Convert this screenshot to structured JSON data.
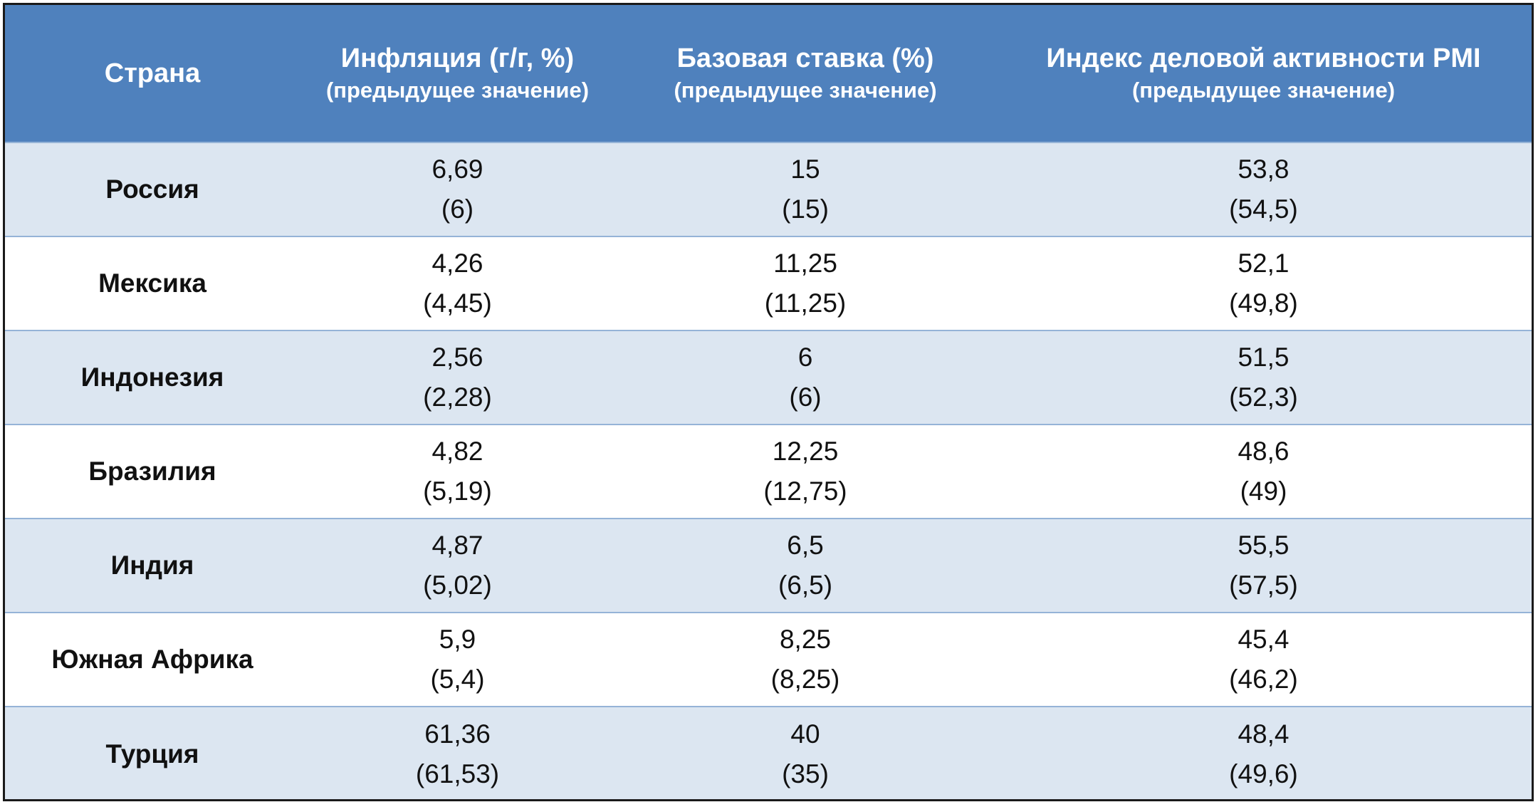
{
  "headers": {
    "country": "Страна",
    "inflation": {
      "title": "Инфляция (г/г, %)",
      "subtitle": "(предыдущее значение)"
    },
    "rate": {
      "title": "Базовая ставка (%)",
      "subtitle": "(предыдущее значение)"
    },
    "pmi": {
      "title": "Индекс деловой активности PMI",
      "subtitle": "(предыдущее значение)"
    }
  },
  "colors": {
    "header_bg": "#4f81bd",
    "band_bg": "#dce6f1",
    "row_divider": "#95b3d7"
  },
  "rows": [
    {
      "country": "Россия",
      "inflation": {
        "current": "6,69",
        "previous": "(6)"
      },
      "rate": {
        "current": "15",
        "previous": "(15)"
      },
      "pmi": {
        "current": "53,8",
        "previous": "(54,5)"
      }
    },
    {
      "country": "Мексика",
      "inflation": {
        "current": "4,26",
        "previous": "(4,45)"
      },
      "rate": {
        "current": "11,25",
        "previous": "(11,25)"
      },
      "pmi": {
        "current": "52,1",
        "previous": "(49,8)"
      }
    },
    {
      "country": "Индонезия",
      "inflation": {
        "current": "2,56",
        "previous": "(2,28)"
      },
      "rate": {
        "current": "6",
        "previous": "(6)"
      },
      "pmi": {
        "current": "51,5",
        "previous": "(52,3)"
      }
    },
    {
      "country": "Бразилия",
      "inflation": {
        "current": "4,82",
        "previous": "(5,19)"
      },
      "rate": {
        "current": "12,25",
        "previous": "(12,75)"
      },
      "pmi": {
        "current": "48,6",
        "previous": "(49)"
      }
    },
    {
      "country": "Индия",
      "inflation": {
        "current": "4,87",
        "previous": "(5,02)"
      },
      "rate": {
        "current": "6,5",
        "previous": "(6,5)"
      },
      "pmi": {
        "current": "55,5",
        "previous": "(57,5)"
      }
    },
    {
      "country": "Южная Африка",
      "inflation": {
        "current": "5,9",
        "previous": "(5,4)"
      },
      "rate": {
        "current": "8,25",
        "previous": "(8,25)"
      },
      "pmi": {
        "current": "45,4",
        "previous": "(46,2)"
      }
    },
    {
      "country": "Турция",
      "inflation": {
        "current": "61,36",
        "previous": "(61,53)"
      },
      "rate": {
        "current": "40",
        "previous": "(35)"
      },
      "pmi": {
        "current": "48,4",
        "previous": "(49,6)"
      }
    }
  ]
}
